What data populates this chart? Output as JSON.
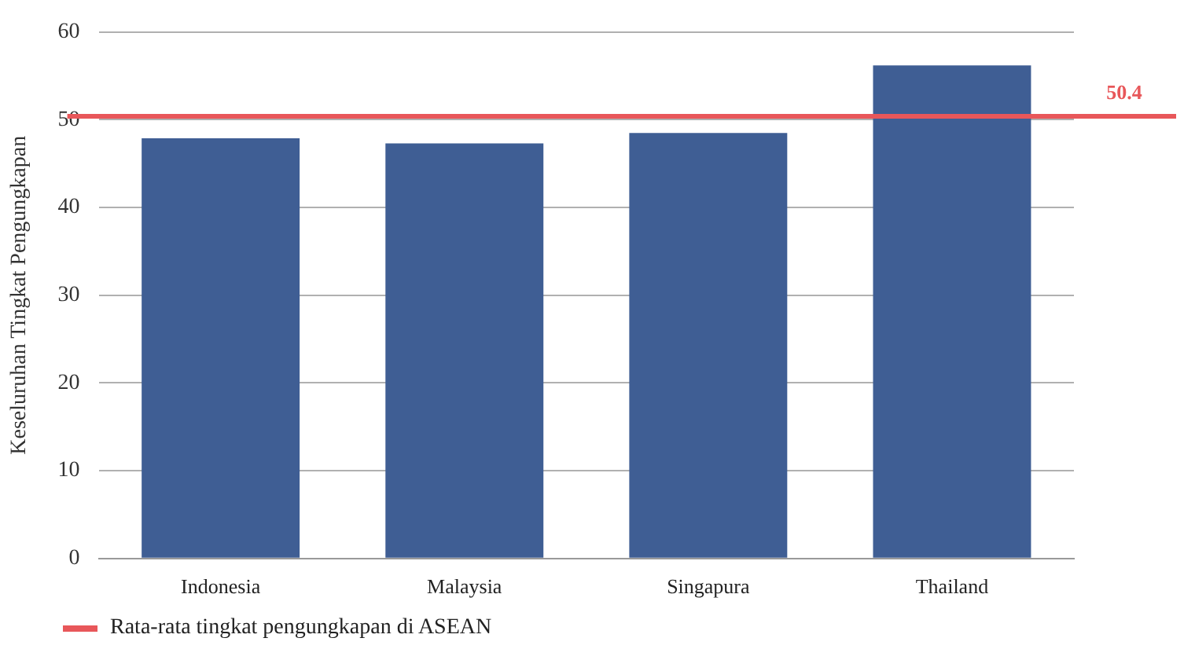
{
  "chart_data": {
    "type": "bar",
    "ylabel": "Keseluruhan Tingkat Pengungkapan",
    "categories": [
      "Indonesia",
      "Malaysia",
      "Singapura",
      "Thailand"
    ],
    "values": [
      47.9,
      47.3,
      48.5,
      56.2
    ],
    "color": "#3f5e94",
    "ylim": [
      0,
      60
    ],
    "yticks": [
      0,
      10,
      20,
      30,
      40,
      50,
      60
    ],
    "grid": "y",
    "ref_lines": [
      {
        "axis": "y",
        "value": 50.4,
        "label": "Rata-rata tingkat pengungkapan di ASEAN",
        "color": "#e8575a"
      }
    ],
    "annotations": [
      {
        "text": "50.4",
        "y": 50.4
      }
    ],
    "legend": "bottom left"
  }
}
